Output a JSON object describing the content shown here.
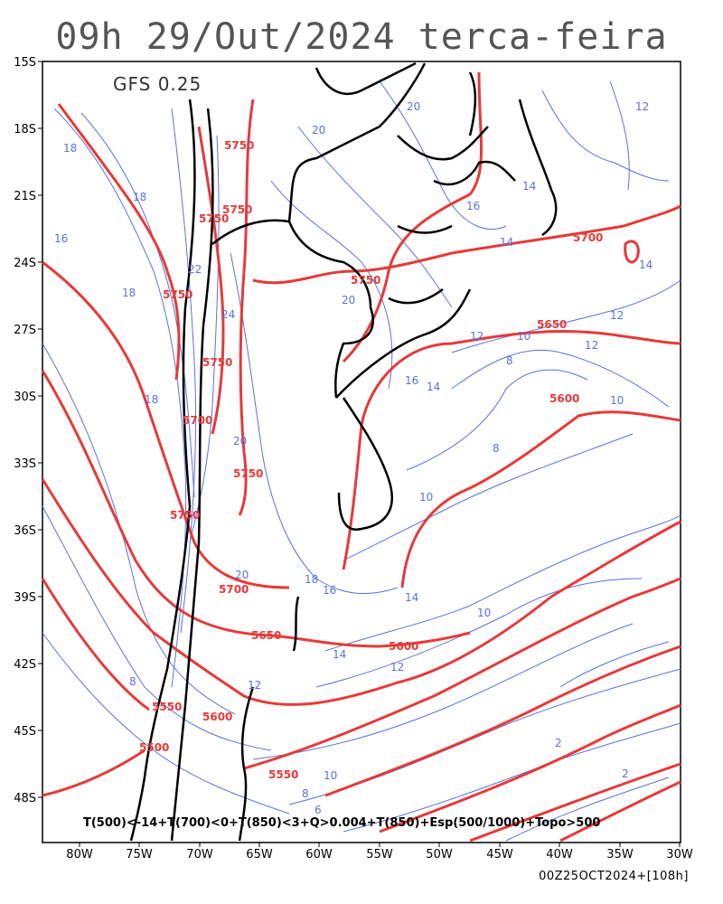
{
  "title": "09h 29/Out/2024 terca-feira",
  "model": "GFS 0.25",
  "legend": "T(500)<-14+T(700)<0+T(850)<3+Q>0.004+T(850)+Esp(500/1000)+Topo>500",
  "run_info": "00Z25OCT2024+[108h]",
  "colors": {
    "geopotential": "#e63a3a",
    "thickness": "#5a72e0",
    "border": "#000000"
  },
  "axes": {
    "lat_labels": [
      "15S",
      "18S",
      "21S",
      "24S",
      "27S",
      "30S",
      "33S",
      "36S",
      "39S",
      "42S",
      "45S",
      "48S"
    ],
    "lon_labels": [
      "80W",
      "75W",
      "70W",
      "65W",
      "60W",
      "55W",
      "50W",
      "45W",
      "40W",
      "35W",
      "30W"
    ]
  },
  "geopotential_labels": [
    "5750",
    "5750",
    "5750",
    "5750",
    "5750",
    "5700",
    "5750",
    "5750",
    "5750",
    "5700",
    "5650",
    "5600",
    "5550",
    "5600",
    "5500",
    "5650",
    "5600",
    "5550",
    "5700"
  ],
  "thickness_labels": [
    "20",
    "18",
    "18",
    "16",
    "18",
    "22",
    "24",
    "20",
    "20",
    "18",
    "16",
    "20",
    "20",
    "16",
    "18",
    "12",
    "14",
    "12",
    "10",
    "8",
    "14",
    "12",
    "10",
    "14",
    "16",
    "14",
    "10",
    "8",
    "10",
    "14",
    "12",
    "12",
    "8",
    "10",
    "8",
    "6",
    "2",
    "2",
    "14",
    "12"
  ]
}
